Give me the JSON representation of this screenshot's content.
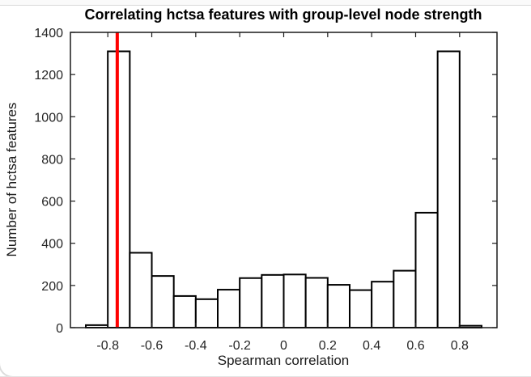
{
  "chart_data": {
    "type": "bar",
    "subtype": "histogram",
    "title": "Correlating hctsa features with group-level node strength",
    "xlabel": "Spearman correlation",
    "ylabel": "Number of hctsa features",
    "bin_edges": [
      -0.9,
      -0.8,
      -0.7,
      -0.6,
      -0.5,
      -0.4,
      -0.3,
      -0.2,
      -0.1,
      0,
      0.1,
      0.2,
      0.3,
      0.4,
      0.5,
      0.6,
      0.7,
      0.8,
      0.9
    ],
    "counts": [
      12,
      1310,
      355,
      245,
      150,
      135,
      180,
      235,
      250,
      252,
      236,
      203,
      178,
      218,
      270,
      545,
      1310,
      9
    ],
    "x_ticks": [
      -0.8,
      -0.6,
      -0.4,
      -0.2,
      0,
      0.2,
      0.4,
      0.6,
      0.8
    ],
    "x_tick_labels": [
      "-0.8",
      "-0.6",
      "-0.4",
      "-0.2",
      "0",
      "0.2",
      "0.4",
      "0.6",
      "0.8"
    ],
    "y_ticks": [
      0,
      200,
      400,
      600,
      800,
      1000,
      1200,
      1400
    ],
    "y_tick_labels": [
      "0",
      "200",
      "400",
      "600",
      "800",
      "1000",
      "1200",
      "1400"
    ],
    "xlim": [
      -0.97,
      0.97
    ],
    "ylim": [
      0,
      1400
    ],
    "grid": false,
    "legend": "none",
    "marker_line": {
      "x": -0.757,
      "color": "#ff0000",
      "width": 4
    },
    "bar_style": {
      "fill": "#ffffff",
      "edge_color": "#000000",
      "edge_width": 2
    },
    "axis_color": "#1a1a1a",
    "tick_label_color": "#262626"
  }
}
